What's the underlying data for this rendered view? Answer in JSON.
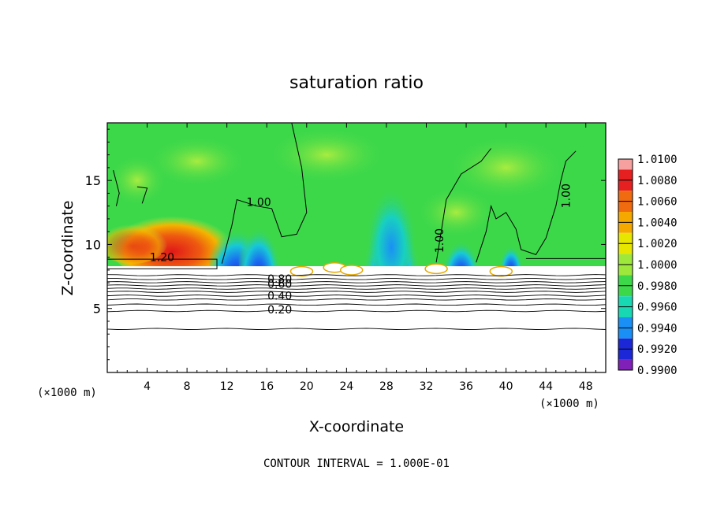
{
  "chart_data": {
    "type": "heatmap",
    "title": "saturation ratio",
    "xlabel": "X-coordinate",
    "ylabel": "Z-coordinate",
    "x_unit_left": "(×1000 m)",
    "x_unit_right": "(×1000 m)",
    "xlim": [
      0,
      50
    ],
    "ylim": [
      0,
      19.5
    ],
    "x_ticks": [
      4,
      8,
      12,
      16,
      20,
      24,
      28,
      32,
      36,
      40,
      44,
      48
    ],
    "y_ticks": [
      5,
      10,
      15
    ],
    "footer": "CONTOUR INTERVAL = 1.000E-01",
    "colorbar": {
      "levels": [
        "1.0100",
        "1.0080",
        "1.0060",
        "1.0040",
        "1.0020",
        "1.0000",
        "0.9980",
        "0.9960",
        "0.9940",
        "0.9920",
        "0.9900"
      ],
      "colors": [
        "#f6a0a0",
        "#e62020",
        "#f06a10",
        "#f5a800",
        "#e6e600",
        "#9ee83c",
        "#3cd84a",
        "#18d8b4",
        "#1a8ff5",
        "#1c28d8",
        "#8020b8"
      ]
    },
    "contour_labels": [
      {
        "text": "1.20",
        "x": 5.5,
        "y": 8.7
      },
      {
        "text": "0.80",
        "x": 17.3,
        "y": 7.0
      },
      {
        "text": "0.60",
        "x": 17.3,
        "y": 6.6
      },
      {
        "text": "0.40",
        "x": 17.3,
        "y": 5.7
      },
      {
        "text": "0.20",
        "x": 17.3,
        "y": 4.6
      },
      {
        "text": "1.00",
        "x": 15.2,
        "y": 13.0
      },
      {
        "text": "1.00",
        "x": 33.7,
        "y": 10.3
      },
      {
        "text": "1.00",
        "x": 46.4,
        "y": 13.8
      }
    ],
    "horizontal_contours_z": [
      3.4,
      4.8,
      5.3,
      5.7,
      6.0,
      6.3,
      6.55,
      6.8,
      7.05,
      7.3,
      7.6
    ]
  }
}
